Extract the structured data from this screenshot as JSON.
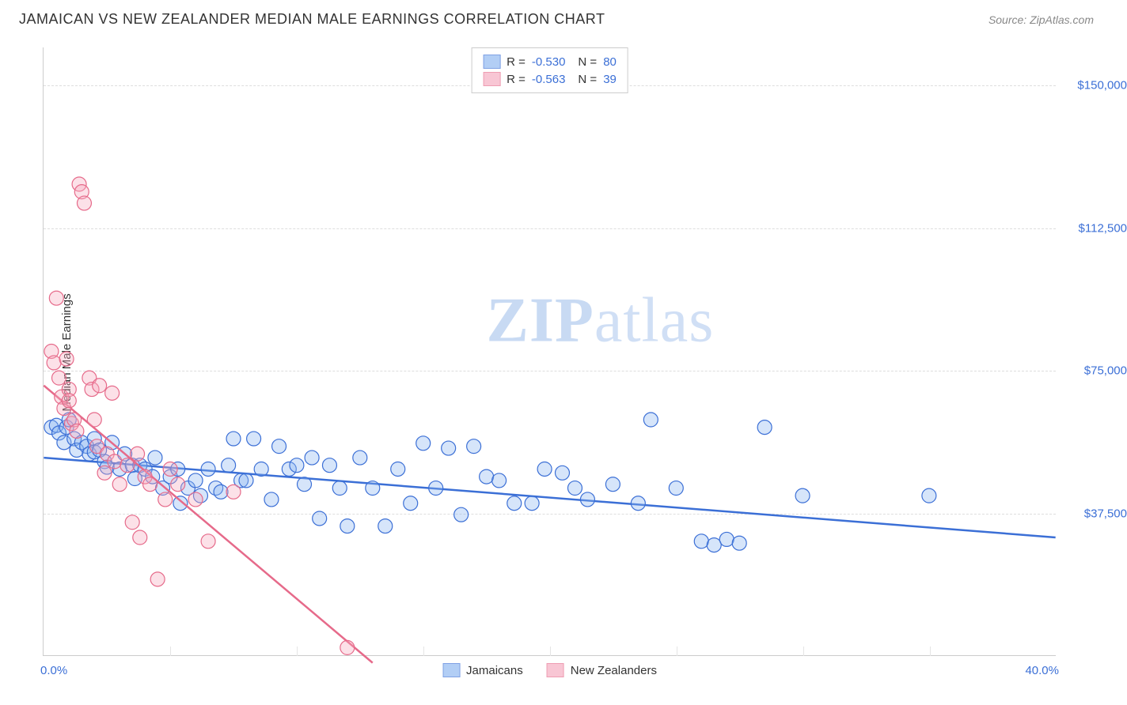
{
  "header": {
    "title": "JAMAICAN VS NEW ZEALANDER MEDIAN MALE EARNINGS CORRELATION CHART",
    "source": "Source: ZipAtlas.com"
  },
  "chart": {
    "type": "scatter",
    "y_axis_label": "Median Male Earnings",
    "x_axis": {
      "min": 0,
      "max": 40,
      "tick_labels": [
        {
          "value": 0,
          "label": "0.0%"
        },
        {
          "value": 40,
          "label": "40.0%"
        }
      ],
      "minor_ticks": [
        5,
        10,
        15,
        20,
        25,
        30,
        35
      ]
    },
    "y_axis": {
      "min": 0,
      "max": 160000,
      "grid_lines": [
        {
          "value": 37500,
          "label": "$37,500"
        },
        {
          "value": 75000,
          "label": "$75,000"
        },
        {
          "value": 112500,
          "label": "$112,500"
        },
        {
          "value": 150000,
          "label": "$150,000"
        }
      ]
    },
    "colors": {
      "blue_stroke": "#3b6fd6",
      "blue_fill": "#8ab4f0",
      "pink_stroke": "#e66a8a",
      "pink_fill": "#f5a8be",
      "grid": "#dddddd",
      "axis": "#cccccc",
      "text": "#333333",
      "value_text": "#3b6fd6",
      "bg": "#ffffff"
    },
    "legend_top": [
      {
        "swatch": "blue",
        "R": "-0.530",
        "N": "80"
      },
      {
        "swatch": "pink",
        "R": "-0.563",
        "N": "39"
      }
    ],
    "legend_bottom": [
      {
        "swatch": "blue",
        "label": "Jamaicans"
      },
      {
        "swatch": "pink",
        "label": "New Zealanders"
      }
    ],
    "watermark": {
      "text_bold": "ZIP",
      "text_light": "atlas"
    },
    "marker_radius": 9,
    "series": [
      {
        "name": "Jamaicans",
        "color": "blue",
        "trend": {
          "x1": 0,
          "y1": 52000,
          "x2": 40,
          "y2": 31000
        },
        "points": [
          [
            0.3,
            60000
          ],
          [
            0.5,
            60500
          ],
          [
            0.6,
            58500
          ],
          [
            0.8,
            56000
          ],
          [
            0.9,
            60000
          ],
          [
            1.0,
            62000
          ],
          [
            1.2,
            57000
          ],
          [
            1.3,
            54000
          ],
          [
            1.5,
            56000
          ],
          [
            1.7,
            55000
          ],
          [
            1.8,
            53000
          ],
          [
            2.0,
            57000
          ],
          [
            2.0,
            53500
          ],
          [
            2.2,
            54000
          ],
          [
            2.4,
            51000
          ],
          [
            2.5,
            49500
          ],
          [
            2.7,
            56000
          ],
          [
            3.0,
            49000
          ],
          [
            3.2,
            53000
          ],
          [
            3.5,
            50000
          ],
          [
            3.6,
            46500
          ],
          [
            3.8,
            50000
          ],
          [
            4.0,
            49000
          ],
          [
            4.3,
            47000
          ],
          [
            4.4,
            52000
          ],
          [
            4.7,
            44000
          ],
          [
            5.0,
            47000
          ],
          [
            5.3,
            49000
          ],
          [
            5.4,
            40000
          ],
          [
            5.7,
            44000
          ],
          [
            6.0,
            46000
          ],
          [
            6.2,
            42000
          ],
          [
            6.5,
            49000
          ],
          [
            6.8,
            44000
          ],
          [
            7.0,
            43000
          ],
          [
            7.3,
            50000
          ],
          [
            7.5,
            57000
          ],
          [
            7.8,
            46000
          ],
          [
            8.0,
            46000
          ],
          [
            8.3,
            57000
          ],
          [
            8.6,
            49000
          ],
          [
            9.0,
            41000
          ],
          [
            9.3,
            55000
          ],
          [
            9.7,
            49000
          ],
          [
            10.0,
            50000
          ],
          [
            10.3,
            45000
          ],
          [
            10.6,
            52000
          ],
          [
            10.9,
            36000
          ],
          [
            11.3,
            50000
          ],
          [
            11.7,
            44000
          ],
          [
            12.0,
            34000
          ],
          [
            12.5,
            52000
          ],
          [
            13.0,
            44000
          ],
          [
            13.5,
            34000
          ],
          [
            14.0,
            49000
          ],
          [
            14.5,
            40000
          ],
          [
            15.0,
            55800
          ],
          [
            15.5,
            44000
          ],
          [
            16.0,
            54500
          ],
          [
            16.5,
            37000
          ],
          [
            17.0,
            55000
          ],
          [
            17.5,
            47000
          ],
          [
            18.0,
            46000
          ],
          [
            18.6,
            40000
          ],
          [
            19.3,
            40000
          ],
          [
            19.8,
            49000
          ],
          [
            20.5,
            48000
          ],
          [
            21.0,
            44000
          ],
          [
            21.5,
            41000
          ],
          [
            22.5,
            45000
          ],
          [
            23.5,
            40000
          ],
          [
            24.0,
            62000
          ],
          [
            25.0,
            44000
          ],
          [
            26.0,
            30000
          ],
          [
            26.5,
            29000
          ],
          [
            27.0,
            30500
          ],
          [
            27.5,
            29500
          ],
          [
            28.5,
            60000
          ],
          [
            30.0,
            42000
          ],
          [
            35.0,
            42000
          ]
        ]
      },
      {
        "name": "New Zealanders",
        "color": "pink",
        "trend": {
          "x1": 0,
          "y1": 71000,
          "x2": 13,
          "y2": -2000
        },
        "points": [
          [
            0.3,
            80000
          ],
          [
            0.4,
            77000
          ],
          [
            0.5,
            94000
          ],
          [
            0.6,
            73000
          ],
          [
            0.7,
            68000
          ],
          [
            0.8,
            65000
          ],
          [
            0.9,
            78000
          ],
          [
            1.0,
            70000
          ],
          [
            1.0,
            67000
          ],
          [
            1.1,
            61000
          ],
          [
            1.2,
            62000
          ],
          [
            1.3,
            59000
          ],
          [
            1.4,
            124000
          ],
          [
            1.5,
            122000
          ],
          [
            1.6,
            119000
          ],
          [
            1.8,
            73000
          ],
          [
            1.9,
            70000
          ],
          [
            2.0,
            62000
          ],
          [
            2.1,
            55000
          ],
          [
            2.2,
            71000
          ],
          [
            2.4,
            48000
          ],
          [
            2.5,
            53000
          ],
          [
            2.7,
            69000
          ],
          [
            2.8,
            51000
          ],
          [
            3.0,
            45000
          ],
          [
            3.3,
            50000
          ],
          [
            3.5,
            35000
          ],
          [
            3.7,
            53000
          ],
          [
            3.8,
            31000
          ],
          [
            4.0,
            47000
          ],
          [
            4.2,
            45000
          ],
          [
            4.5,
            20000
          ],
          [
            4.8,
            41000
          ],
          [
            5.0,
            49000
          ],
          [
            5.3,
            45000
          ],
          [
            6.0,
            41000
          ],
          [
            6.5,
            30000
          ],
          [
            7.5,
            43000
          ],
          [
            12.0,
            2000
          ]
        ]
      }
    ]
  }
}
